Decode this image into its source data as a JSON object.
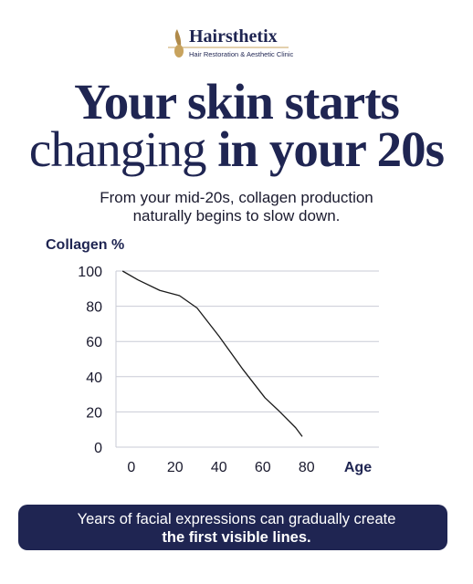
{
  "brand": {
    "name": "Hairsthetix",
    "tagline": "Hair Restoration & Aesthetic Clinic"
  },
  "headline": {
    "line1": "Your skin starts",
    "line2_regular": "changing",
    "line2_bold": "in your 20s"
  },
  "subtitle": {
    "line1": "From your mid-20s, collagen production",
    "line2": "naturally begins to slow down."
  },
  "footer": {
    "line1": "Years of facial expressions can gradually create",
    "line2": "the first visible lines."
  },
  "chart_data": {
    "type": "line",
    "ylabel": "Collagen %",
    "xlabel": "Age",
    "x": [
      -4,
      3,
      13,
      22,
      30,
      40,
      51,
      61,
      67,
      75,
      78
    ],
    "values": [
      100,
      95,
      89,
      86,
      79,
      63,
      44,
      28,
      21,
      11,
      6
    ],
    "color": "#1a1a1a",
    "xlim": [
      -7,
      113
    ],
    "xticks": [
      0,
      20,
      40,
      60,
      80
    ],
    "ylim": [
      0,
      100
    ],
    "yticks": [
      0,
      20,
      40,
      60,
      80,
      100
    ],
    "grid": true
  }
}
